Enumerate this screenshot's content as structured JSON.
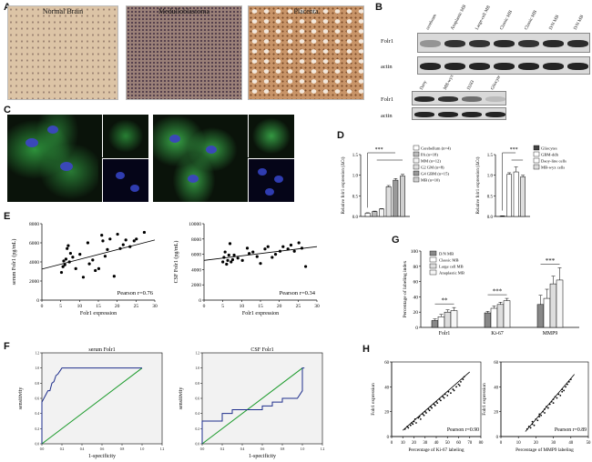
{
  "panels": {
    "A": {
      "label": "A",
      "images": [
        {
          "title": "Normal Brain",
          "tint": "#d8c0a0"
        },
        {
          "title": "Medulloblastoma",
          "tint": "#8c7068"
        },
        {
          "title": "Placenta",
          "tint": "#c08858"
        }
      ]
    },
    "B": {
      "label": "B",
      "blot1": {
        "lanes": [
          "cerebrum",
          "Anaplastic MB",
          "Large-cell MB",
          "Classic MB",
          "Classic MB",
          "D/N MB",
          "D/N MB"
        ],
        "rows": [
          "Folr1",
          "actin"
        ]
      },
      "blot2": {
        "lanes": [
          "Daoy",
          "MB-wyx",
          "D283",
          "Gliocyte"
        ],
        "rows": [
          "Folr1",
          "actin"
        ]
      }
    },
    "C": {
      "label": "C"
    },
    "D": {
      "label": "D"
    },
    "E": {
      "label": "E"
    },
    "F": {
      "label": "F"
    },
    "G": {
      "label": "G"
    },
    "H": {
      "label": "H"
    }
  },
  "chart_data": [
    {
      "id": "D-left",
      "type": "bar",
      "ylabel": "Relative folr1 expression (ΔCt)",
      "ylim": [
        0,
        1.5
      ],
      "yticks": [
        "0.0",
        "0.5",
        "1.0",
        "1.5"
      ],
      "categories": [
        "Cerebellum (n=4)",
        "PA (n=18)",
        "MM (n=12)",
        "G2 GM (n=8)",
        "G4 GBM (n=15)",
        "MB (n=10)"
      ],
      "values": [
        0.08,
        0.12,
        0.18,
        0.72,
        0.88,
        0.98
      ],
      "errors": [
        0.01,
        0.01,
        0.01,
        0.03,
        0.04,
        0.04
      ],
      "significance": "***"
    },
    {
      "id": "D-right",
      "type": "bar",
      "ylabel": "Relative folr1 expression (ΔCt)",
      "ylim": [
        0,
        1.5
      ],
      "yticks": [
        "0.0",
        "0.5",
        "1.0",
        "1.5"
      ],
      "categories": [
        "Gliocytes",
        "GBM-ddh",
        "Daoy-line cells",
        "MB-wyx cells"
      ],
      "values": [
        0.01,
        1.02,
        1.08,
        0.96
      ],
      "errors": [
        0.005,
        0.04,
        0.12,
        0.04
      ],
      "significance": "***"
    },
    {
      "id": "E-left",
      "type": "scatter",
      "xlabel": "Folr1 expression",
      "ylabel": "serum Folr1 (pg/mL)",
      "xlim": [
        0,
        30
      ],
      "ylim": [
        0,
        8000
      ],
      "xticks": [
        "0",
        "5",
        "10",
        "15",
        "20",
        "25",
        "30"
      ],
      "yticks": [
        "0",
        "2000",
        "4000",
        "6000",
        "8000"
      ],
      "annotation": "Pearson r=0.76",
      "x": [
        5.2,
        5.6,
        5.8,
        6.1,
        6.4,
        6.7,
        7.0,
        7.3,
        7.6,
        8.2,
        9.0,
        10.1,
        11.0,
        12.2,
        12.6,
        13.5,
        14.2,
        15.1,
        15.9,
        16.2,
        16.8,
        17.4,
        18.1,
        19.2,
        20.1,
        20.8,
        21.6,
        22.3,
        23.4,
        24.5,
        25.1,
        27.2
      ],
      "y": [
        2900,
        3500,
        4100,
        3700,
        4300,
        5400,
        5700,
        4000,
        4900,
        4500,
        3300,
        4800,
        2400,
        6000,
        3800,
        4200,
        3100,
        3300,
        6800,
        6200,
        4600,
        5300,
        6400,
        2500,
        6900,
        5400,
        5800,
        6300,
        5600,
        6200,
        6400,
        7100
      ],
      "fit": [
        [
          0,
          3250
        ],
        [
          30,
          6300
        ]
      ]
    },
    {
      "id": "E-right",
      "type": "scatter",
      "xlabel": "Folr1 expression",
      "ylabel": "CSF Folr1 (pg/mL)",
      "xlim": [
        0,
        30
      ],
      "ylim": [
        0,
        10000
      ],
      "xticks": [
        "0",
        "5",
        "10",
        "15",
        "20",
        "25",
        "30"
      ],
      "yticks": [
        "0",
        "2000",
        "4000",
        "6000",
        "8000",
        "10000"
      ],
      "annotation": "Pearson r=0.34",
      "x": [
        5.0,
        5.3,
        5.6,
        6.0,
        6.3,
        6.6,
        6.9,
        7.2,
        7.6,
        8.0,
        9.0,
        10.2,
        11.5,
        12.0,
        13.0,
        14.1,
        15.0,
        16.2,
        17.0,
        18.1,
        19.0,
        20.2,
        21.0,
        22.3,
        23.1,
        24.0,
        25.2,
        26.0,
        27.0
      ],
      "y": [
        5000,
        5600,
        6300,
        4700,
        5200,
        5900,
        7400,
        5000,
        5300,
        5900,
        5500,
        5200,
        6800,
        6100,
        6300,
        5700,
        4800,
        6700,
        7000,
        5600,
        6000,
        6400,
        7000,
        6700,
        7200,
        6400,
        7500,
        6800,
        4400
      ],
      "fit": [
        [
          0,
          5200
        ],
        [
          30,
          7000
        ]
      ]
    },
    {
      "id": "F-left",
      "type": "line",
      "title": "serum Folr1",
      "xlabel": "1-specificity",
      "ylabel": "sensitivity",
      "xlim": [
        0,
        1.2
      ],
      "ylim": [
        0,
        1.2
      ],
      "xticks": [
        "0.0",
        "0.2",
        "0.4",
        "0.6",
        "0.8",
        "1.0",
        "1.2"
      ],
      "yticks": [
        "0.0",
        "0.2",
        "0.4",
        "0.6",
        "0.8",
        "1.0",
        "1.2"
      ],
      "roc": [
        [
          0,
          0
        ],
        [
          0,
          0.55
        ],
        [
          0.02,
          0.6
        ],
        [
          0.04,
          0.65
        ],
        [
          0.06,
          0.7
        ],
        [
          0.08,
          0.7
        ],
        [
          0.1,
          0.8
        ],
        [
          0.12,
          0.82
        ],
        [
          0.14,
          0.9
        ],
        [
          0.16,
          0.92
        ],
        [
          0.2,
          1.0
        ],
        [
          0.24,
          1.0
        ],
        [
          1.0,
          1.0
        ]
      ],
      "reference": [
        [
          0,
          0
        ],
        [
          1,
          1
        ]
      ]
    },
    {
      "id": "F-right",
      "type": "line",
      "title": "CSF Folr1",
      "xlabel": "1-specificity",
      "ylabel": "sensitivity",
      "xlim": [
        0,
        1.2
      ],
      "ylim": [
        0,
        1.2
      ],
      "xticks": [
        "0.0",
        "0.2",
        "0.4",
        "0.6",
        "0.8",
        "1.0",
        "1.2"
      ],
      "yticks": [
        "0.0",
        "0.2",
        "0.4",
        "0.6",
        "0.8",
        "1.0",
        "1.2"
      ],
      "roc": [
        [
          0,
          0
        ],
        [
          0,
          0.3
        ],
        [
          0.2,
          0.3
        ],
        [
          0.2,
          0.4
        ],
        [
          0.3,
          0.4
        ],
        [
          0.3,
          0.45
        ],
        [
          0.6,
          0.45
        ],
        [
          0.6,
          0.5
        ],
        [
          0.7,
          0.5
        ],
        [
          0.7,
          0.55
        ],
        [
          0.8,
          0.55
        ],
        [
          0.8,
          0.6
        ],
        [
          0.95,
          0.6
        ],
        [
          1.0,
          0.7
        ],
        [
          1.0,
          1.0
        ],
        [
          1.02,
          1.0
        ]
      ],
      "reference": [
        [
          0,
          0
        ],
        [
          1,
          1
        ]
      ]
    },
    {
      "id": "G",
      "type": "bar",
      "ylabel": "Percentage of labeling index",
      "ylim": [
        0,
        100
      ],
      "yticks": [
        "0",
        "20",
        "40",
        "60",
        "80",
        "100"
      ],
      "categories": [
        "Folr1",
        "Ki-67",
        "MMP9"
      ],
      "series": [
        {
          "name": "D/N MB",
          "values": [
            9,
            19,
            30
          ],
          "errors": [
            2,
            2,
            12
          ]
        },
        {
          "name": "Classic MB",
          "values": [
            14,
            25,
            38
          ],
          "errors": [
            3,
            3,
            12
          ]
        },
        {
          "name": "Large cell MB",
          "values": [
            20,
            30,
            57
          ],
          "errors": [
            3,
            3,
            10
          ]
        },
        {
          "name": "Anaplastic MB",
          "values": [
            22,
            35,
            62
          ],
          "errors": [
            4,
            3,
            16
          ]
        }
      ],
      "significance": [
        "**",
        "***",
        "***"
      ]
    },
    {
      "id": "H-left",
      "type": "scatter",
      "xlabel": "Percentage of Ki-67 labeling",
      "ylabel": "Folr1 expression",
      "xlim": [
        0,
        80
      ],
      "ylim": [
        0,
        60
      ],
      "xticks": [
        "0",
        "10",
        "20",
        "30",
        "40",
        "50",
        "60",
        "70",
        "80"
      ],
      "yticks": [
        "0",
        "20",
        "40",
        "60"
      ],
      "annotation": "Pearson r=0.90",
      "x": [
        12,
        14,
        15,
        17,
        18,
        19,
        20,
        21,
        22,
        24,
        25,
        26,
        28,
        29,
        30,
        31,
        33,
        34,
        35,
        36,
        38,
        39,
        40,
        41,
        43,
        44,
        46,
        47,
        48,
        50,
        51,
        53,
        55,
        56,
        58,
        60,
        61,
        62,
        64,
        65
      ],
      "y": [
        6,
        8,
        7,
        9,
        11,
        10,
        12,
        14,
        11,
        15,
        16,
        14,
        18,
        17,
        20,
        19,
        22,
        21,
        24,
        23,
        26,
        25,
        28,
        27,
        30,
        29,
        32,
        31,
        34,
        33,
        36,
        35,
        38,
        37,
        40,
        42,
        41,
        44,
        46,
        48
      ],
      "fit": [
        [
          10,
          5
        ],
        [
          70,
          52
        ]
      ]
    },
    {
      "id": "H-right",
      "type": "scatter",
      "xlabel": "Percentage of MMP9 labeling",
      "ylabel": "Folr1 expression",
      "xlim": [
        0,
        50
      ],
      "ylim": [
        0,
        60
      ],
      "xticks": [
        "0",
        "10",
        "20",
        "30",
        "40",
        "50"
      ],
      "yticks": [
        "0",
        "20",
        "40",
        "60"
      ],
      "annotation": "Pearson r=0.89",
      "x": [
        15,
        16,
        17,
        18,
        18,
        19,
        20,
        21,
        22,
        22,
        23,
        24,
        25,
        25,
        26,
        27,
        28,
        29,
        30,
        30,
        31,
        32,
        33,
        34,
        35,
        35,
        36,
        37,
        38,
        39,
        40
      ],
      "y": [
        6,
        8,
        7,
        10,
        12,
        9,
        14,
        13,
        16,
        18,
        17,
        20,
        22,
        19,
        24,
        23,
        26,
        28,
        27,
        30,
        32,
        31,
        34,
        33,
        36,
        38,
        37,
        40,
        42,
        44,
        46
      ],
      "fit": [
        [
          14,
          4
        ],
        [
          42,
          50
        ]
      ]
    }
  ]
}
